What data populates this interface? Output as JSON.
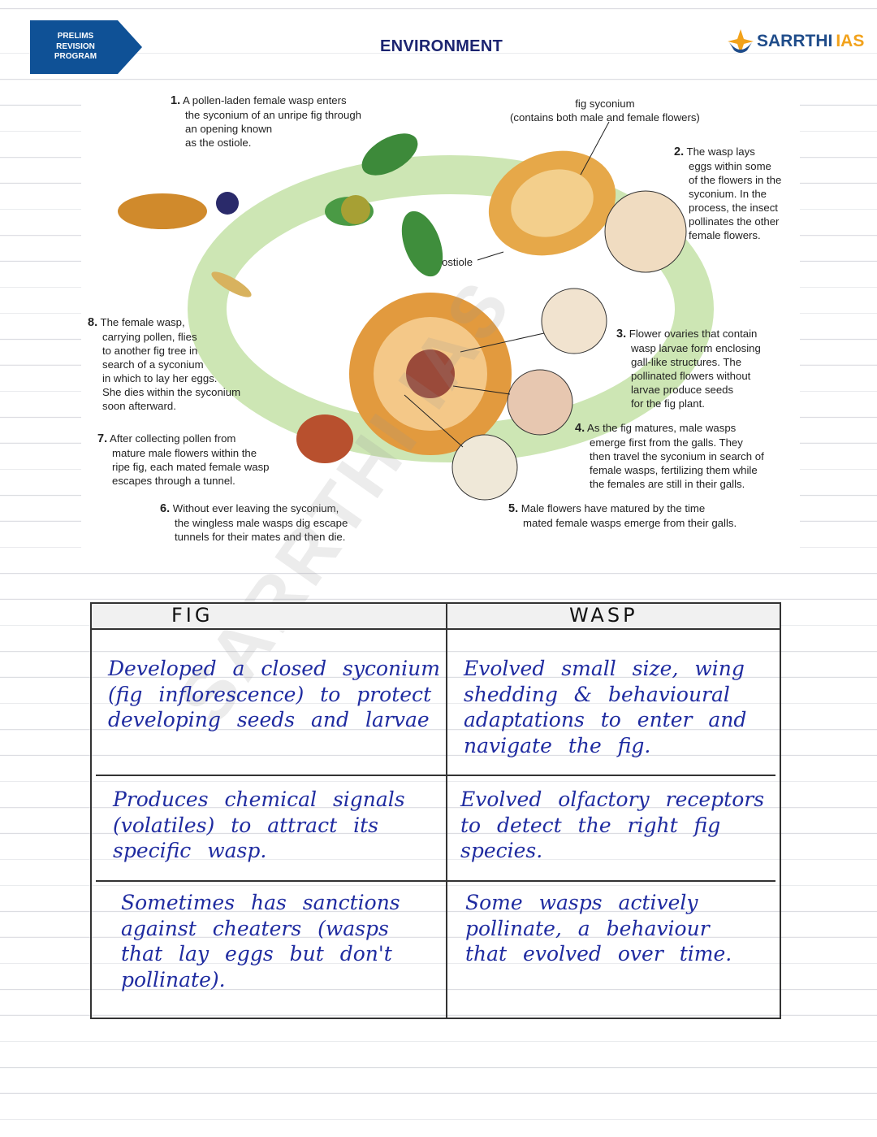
{
  "header": {
    "badge_lines": [
      "PRELIMS",
      "REVISION",
      "PROGRAM"
    ],
    "title": "ENVIRONMENT",
    "logo_main": "SARRTHI",
    "logo_accent": "IAS",
    "colors": {
      "badge": "#0f5196",
      "title": "#1c2470",
      "logo_blue": "#1f4c8a",
      "logo_orange": "#f2a21b"
    }
  },
  "diagram": {
    "captions": [
      {
        "num": "1.",
        "text": [
          "A pollen-laden female wasp enters",
          "the syconium of an unripe fig through",
          "an opening known",
          "as the ostiole."
        ]
      },
      {
        "num": "2.",
        "text": [
          "The wasp lays",
          "eggs within some",
          "of the flowers in the",
          "syconium. In the",
          "process, the insect",
          "pollinates the other",
          "female flowers."
        ]
      },
      {
        "num": "3.",
        "text": [
          "Flower ovaries that contain",
          "wasp larvae form enclosing",
          "gall-like structures. The",
          "pollinated flowers without",
          "larvae produce seeds",
          "for the fig plant."
        ]
      },
      {
        "num": "4.",
        "text": [
          "As the fig matures, male wasps",
          "emerge first from the galls. They",
          "then travel the syconium in search of",
          "female wasps, fertilizing them while",
          "the females are still in their galls."
        ]
      },
      {
        "num": "5.",
        "text": [
          "Male flowers have matured by the time",
          "mated female wasps emerge from their galls."
        ]
      },
      {
        "num": "6.",
        "text": [
          "Without ever leaving the syconium,",
          "the wingless male wasps dig escape",
          "tunnels for their mates and then die."
        ]
      },
      {
        "num": "7.",
        "text": [
          "After collecting pollen from",
          "mature male flowers within the",
          "ripe fig, each mated female wasp",
          "escapes through a tunnel."
        ]
      },
      {
        "num": "8.",
        "text": [
          "The female wasp,",
          "carrying pollen, flies",
          "to another fig tree in",
          "search of a syconium",
          "in which to lay her eggs.",
          "She dies within the syconium",
          "soon afterward."
        ]
      }
    ],
    "label_fig_syconium": [
      "fig syconium",
      "(contains both male and female flowers)"
    ],
    "label_ostiole": "ostiole"
  },
  "table": {
    "headers": [
      "FIG",
      "WASP"
    ],
    "rows": [
      [
        "Developed a closed syconium (fig inflorescence) to protect developing seeds and larvae",
        "Evolved small size, wing shedding & behavioural adaptations to enter and navigate the fig."
      ],
      [
        "Produces chemical signals (volatiles) to attract its specific wasp.",
        "Evolved olfactory receptors to detect the right fig species."
      ],
      [
        "Sometimes has sanctions against cheaters (wasps that lay eggs but don't pollinate).",
        "Some wasps actively pollinate, a behaviour that evolved over time."
      ]
    ]
  },
  "watermark": "SARRTHI IAS"
}
